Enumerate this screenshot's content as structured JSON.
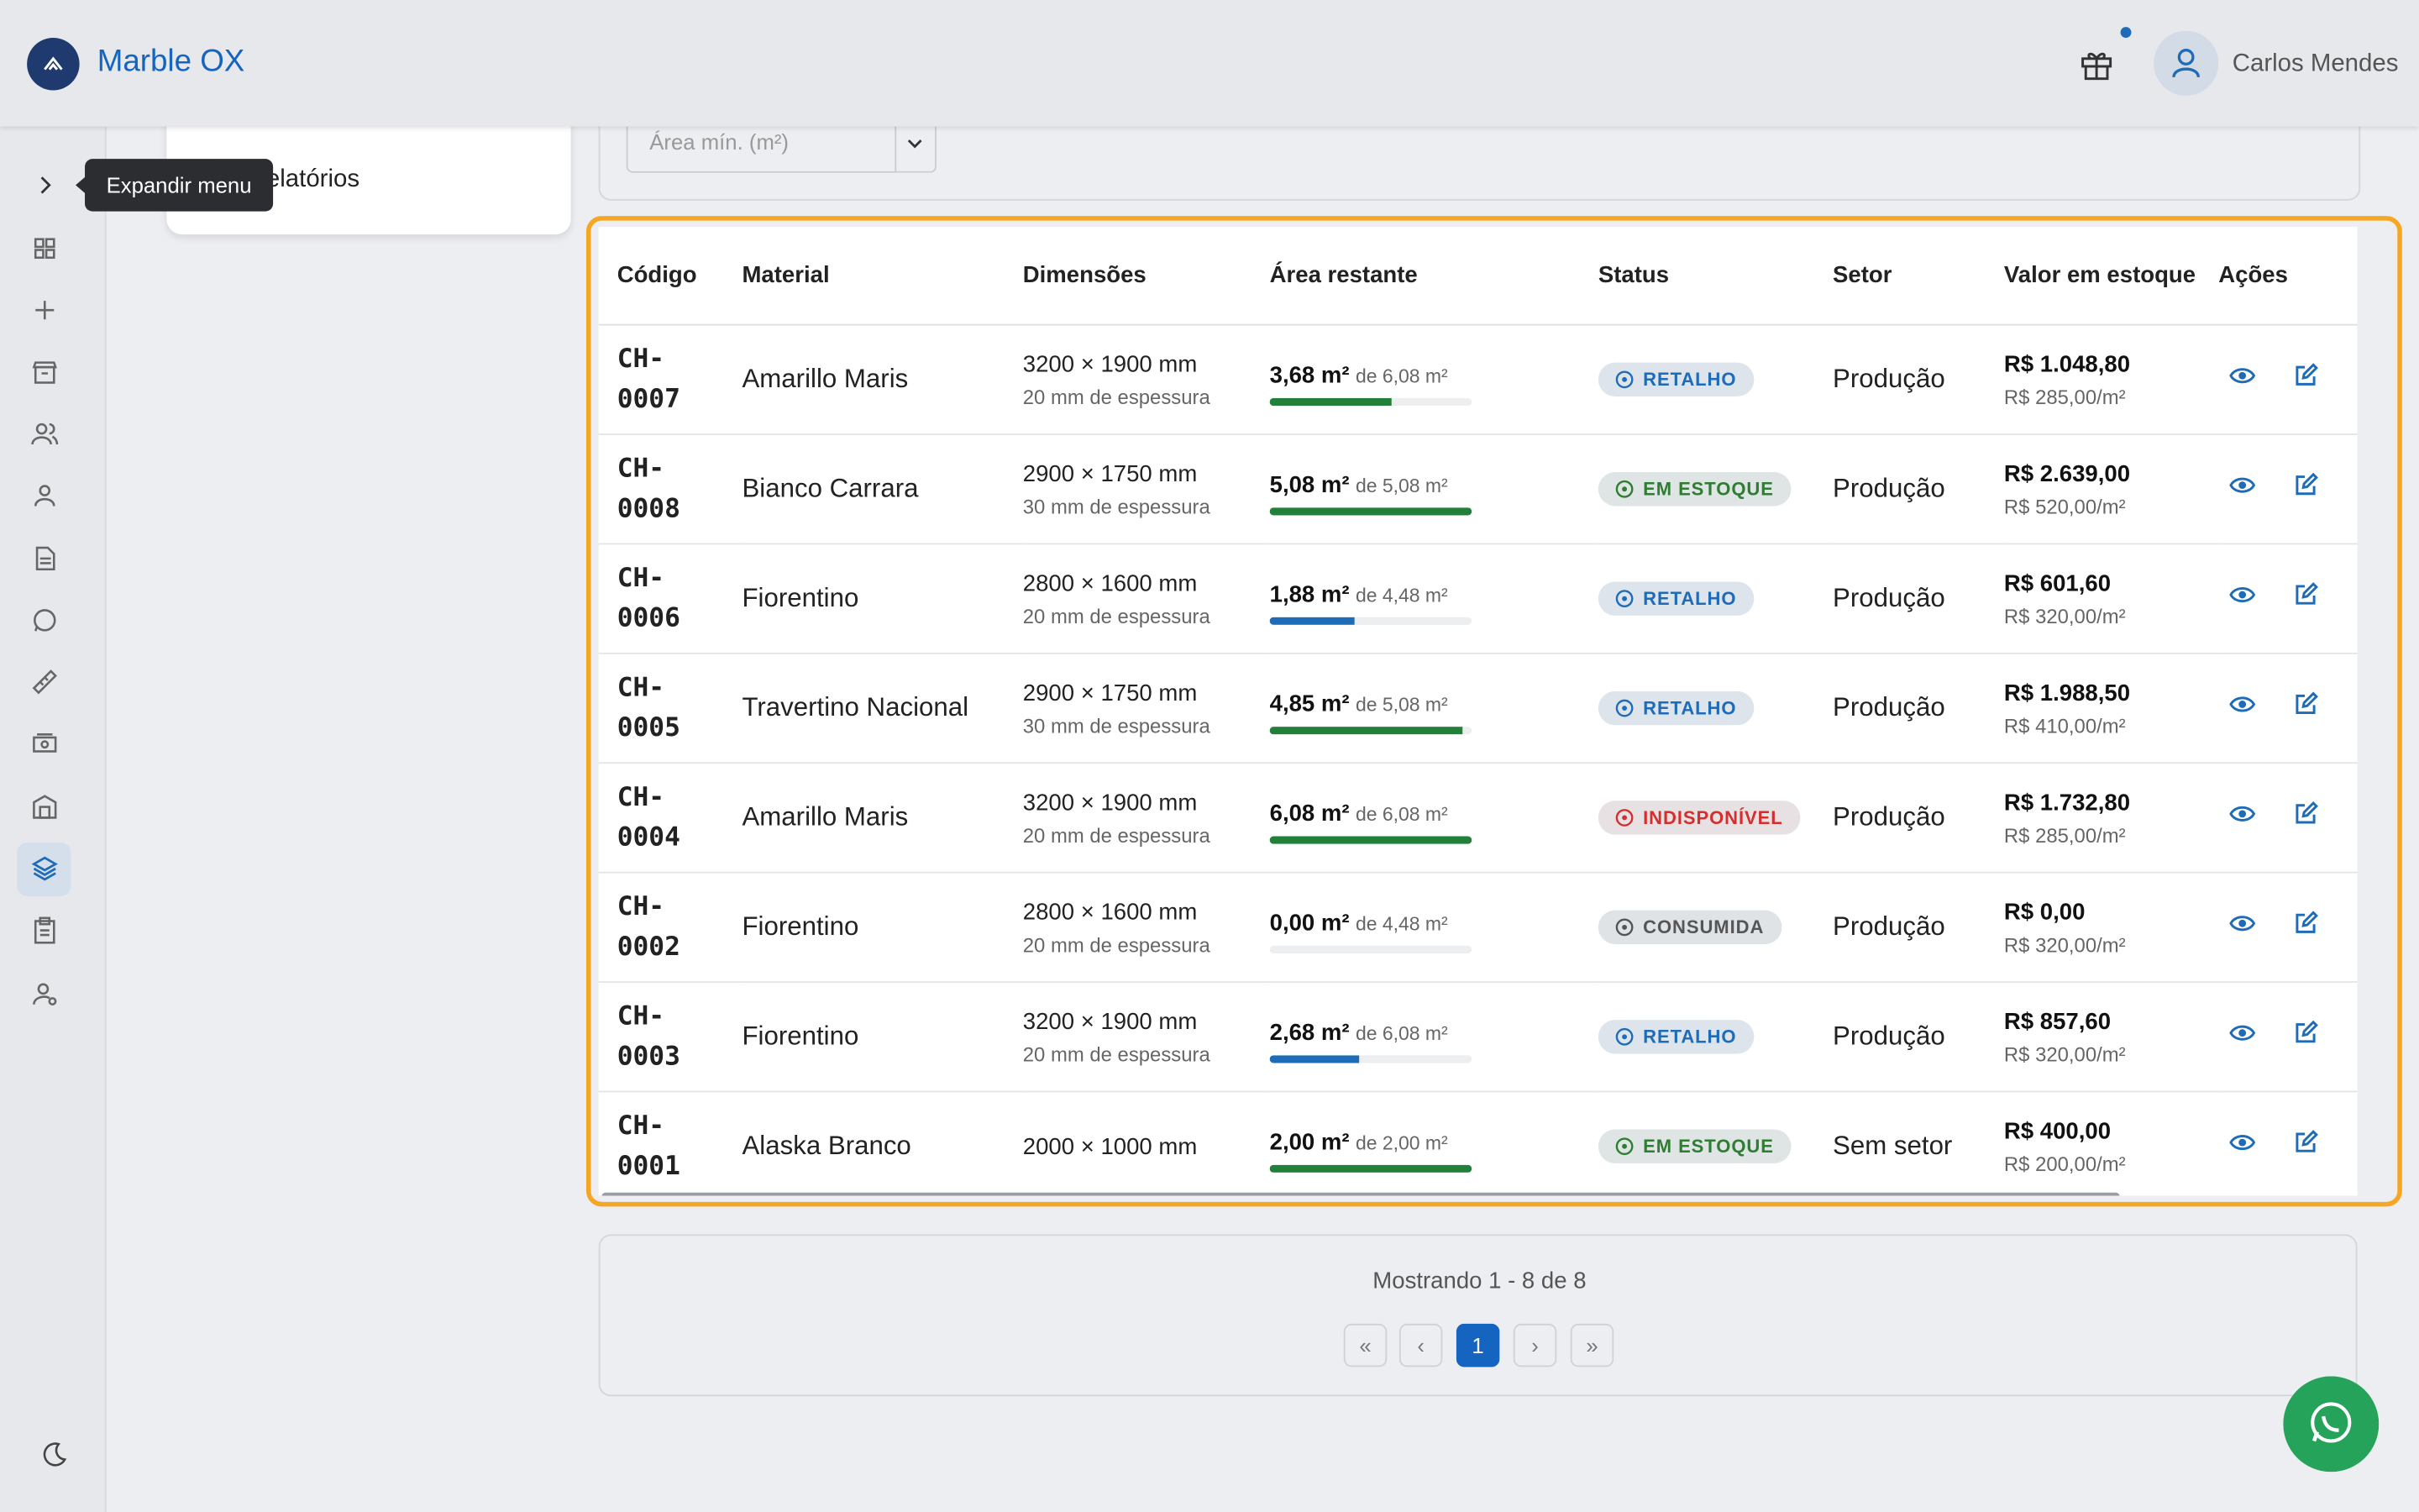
{
  "header": {
    "brand": "Marble OX",
    "user": "Carlos Mendes"
  },
  "sidebar": {
    "tooltip": "Expandir menu",
    "submenu_item": "Relatórios"
  },
  "filters": {
    "area_min_placeholder": "Área mín. (m²)"
  },
  "table": {
    "columns": [
      "Código",
      "Material",
      "Dimensões",
      "Área restante",
      "Status",
      "Setor",
      "Valor em estoque",
      "Ações"
    ],
    "rows": [
      {
        "code": "CH-0007",
        "material": "Amarillo Maris",
        "dimensions": "3200 × 1900 mm",
        "thickness": "20 mm de espessura",
        "area": "3,68 m²",
        "area_total": "de 6,08 m²",
        "status": "RETALHO",
        "status_color": "#1e6bb8",
        "sector": "Produção",
        "value": "R$ 1.048,80",
        "value_per_m2": "R$ 285,00/m²"
      },
      {
        "code": "CH-0008",
        "material": "Bianco Carrara",
        "dimensions": "2900 × 1750 mm",
        "thickness": "30 mm de espessura",
        "area": "5,08 m²",
        "area_total": "de 5,08 m²",
        "status": "EM ESTOQUE",
        "status_color": "#2e7d32",
        "sector": "Produção",
        "value": "R$ 2.639,00",
        "value_per_m2": "R$ 520,00/m²"
      },
      {
        "code": "CH-0006",
        "material": "Fiorentino",
        "dimensions": "2800 × 1600 mm",
        "thickness": "20 mm de espessura",
        "area": "1,88 m²",
        "area_total": "de 4,48 m²",
        "status": "RETALHO",
        "status_color": "#1e6bb8",
        "sector": "Produção",
        "value": "R$ 601,60",
        "value_per_m2": "R$ 320,00/m²"
      },
      {
        "code": "CH-0005",
        "material": "Travertino Nacional",
        "dimensions": "2900 × 1750 mm",
        "thickness": "30 mm de espessura",
        "area": "4,85 m²",
        "area_total": "de 5,08 m²",
        "status": "RETALHO",
        "status_color": "#1e6bb8",
        "sector": "Produção",
        "value": "R$ 1.988,50",
        "value_per_m2": "R$ 410,00/m²"
      },
      {
        "code": "CH-0004",
        "material": "Amarillo Maris",
        "dimensions": "3200 × 1900 mm",
        "thickness": "20 mm de espessura",
        "area": "6,08 m²",
        "area_total": "de 6,08 m²",
        "status": "INDISPONÍVEL",
        "status_color": "#d32f2f",
        "sector": "Produção",
        "value": "R$ 1.732,80",
        "value_per_m2": "R$ 285,00/m²"
      },
      {
        "code": "CH-0002",
        "material": "Fiorentino",
        "dimensions": "2800 × 1600 mm",
        "thickness": "20 mm de espessura",
        "area": "0,00 m²",
        "area_total": "de 4,48 m²",
        "status": "CONSUMIDA",
        "status_color": "#555555",
        "sector": "Produção",
        "value": "R$ 0,00",
        "value_per_m2": "R$ 320,00/m²"
      },
      {
        "code": "CH-0003",
        "material": "Fiorentino",
        "dimensions": "3200 × 1900 mm",
        "thickness": "20 mm de espessura",
        "area": "2,68 m²",
        "area_total": "de 6,08 m²",
        "status": "RETALHO",
        "status_color": "#1e6bb8",
        "sector": "Produção",
        "value": "R$ 857,60",
        "value_per_m2": "R$ 320,00/m²"
      },
      {
        "code": "CH-0001",
        "material": "Alaska Branco",
        "dimensions": "2000 × 1000 mm",
        "thickness": null,
        "area": "2,00 m²",
        "area_total": "de 2,00 m²",
        "status": "EM ESTOQUE",
        "status_color": "#2e7d32",
        "sector": "Sem setor",
        "value": "R$ 400,00",
        "value_per_m2": "R$ 200,00/m²"
      }
    ]
  },
  "pagination": {
    "summary": "Mostrando 1 - 8 de 8",
    "current_page": "1"
  }
}
